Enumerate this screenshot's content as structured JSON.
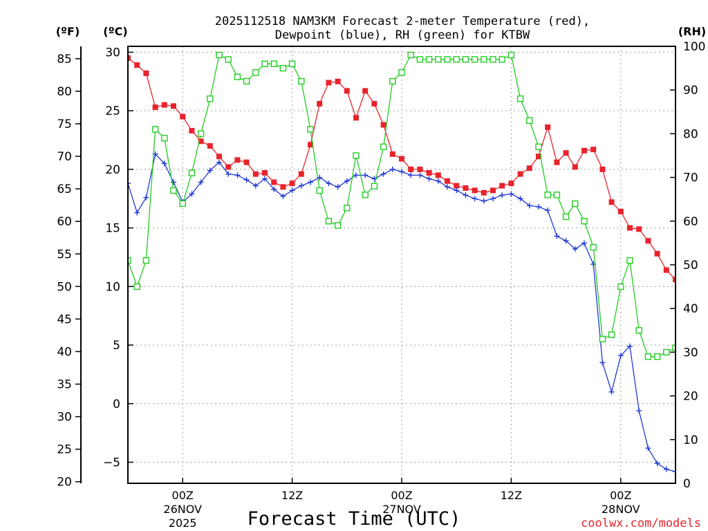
{
  "chart_data": {
    "type": "line",
    "title_line1": "2025112518 NAM3KM Forecast 2-meter Temperature (red),",
    "title_line2": "Dewpoint (blue), RH (green) for KTBW",
    "xlabel": "Forecast Time (UTC)",
    "watermark": "coolwx.com/models",
    "axis_units": {
      "fahrenheit": "(ºF)",
      "celsius": "(ºC)",
      "rh": "(RH)"
    },
    "x_range_hours": [
      0,
      60
    ],
    "celsius_range": [
      -6.8,
      30.5
    ],
    "rh_range": [
      0,
      100
    ],
    "fahrenheit_ticks": [
      "20",
      "25",
      "30",
      "35",
      "40",
      "45",
      "50",
      "55",
      "60",
      "65",
      "70",
      "75",
      "80",
      "85"
    ],
    "celsius_ticks": [
      "-5",
      "0",
      "5",
      "10",
      "15",
      "20",
      "25",
      "30"
    ],
    "rh_ticks": [
      "0",
      "10",
      "20",
      "30",
      "40",
      "50",
      "60",
      "70",
      "80",
      "90",
      "100"
    ],
    "x_ticks": [
      {
        "hour": 6,
        "label": "00Z",
        "date": "26NOV",
        "year": "2025"
      },
      {
        "hour": 18,
        "label": "12Z",
        "date": "",
        "year": ""
      },
      {
        "hour": 30,
        "label": "00Z",
        "date": "27NOV",
        "year": ""
      },
      {
        "hour": 42,
        "label": "12Z",
        "date": "",
        "year": ""
      },
      {
        "hour": 54,
        "label": "00Z",
        "date": "28NOV",
        "year": ""
      }
    ],
    "series": [
      {
        "name": "2-meter Temperature",
        "unit": "C",
        "color": "#e8232c",
        "marker": "filled-square",
        "points": [
          [
            0,
            29.5
          ],
          [
            1,
            28.9
          ],
          [
            2,
            28.2
          ],
          [
            3,
            25.3
          ],
          [
            4,
            25.5
          ],
          [
            5,
            25.4
          ],
          [
            6,
            24.5
          ],
          [
            7,
            23.3
          ],
          [
            8,
            22.4
          ],
          [
            9,
            22.0
          ],
          [
            10,
            21.1
          ],
          [
            11,
            20.2
          ],
          [
            12,
            20.8
          ],
          [
            13,
            20.6
          ],
          [
            14,
            19.6
          ],
          [
            15,
            19.7
          ],
          [
            16,
            18.9
          ],
          [
            17,
            18.5
          ],
          [
            18,
            18.8
          ],
          [
            19,
            19.6
          ],
          [
            20,
            22.1
          ],
          [
            21,
            25.6
          ],
          [
            22,
            27.4
          ],
          [
            23,
            27.5
          ],
          [
            24,
            26.7
          ],
          [
            25,
            24.4
          ],
          [
            26,
            26.7
          ],
          [
            27,
            25.6
          ],
          [
            28,
            23.8
          ],
          [
            29,
            21.3
          ],
          [
            30,
            20.9
          ],
          [
            31,
            20.0
          ],
          [
            32,
            20.0
          ],
          [
            33,
            19.7
          ],
          [
            34,
            19.5
          ],
          [
            35,
            19.0
          ],
          [
            36,
            18.6
          ],
          [
            37,
            18.4
          ],
          [
            38,
            18.2
          ],
          [
            39,
            18.0
          ],
          [
            40,
            18.2
          ],
          [
            41,
            18.6
          ],
          [
            42,
            18.8
          ],
          [
            43,
            19.6
          ],
          [
            44,
            20.1
          ],
          [
            45,
            21.1
          ],
          [
            46,
            23.6
          ],
          [
            47,
            20.6
          ],
          [
            48,
            21.4
          ],
          [
            49,
            20.2
          ],
          [
            50,
            21.6
          ],
          [
            51,
            21.7
          ],
          [
            52,
            20.0
          ],
          [
            53,
            17.2
          ],
          [
            54,
            16.4
          ],
          [
            55,
            15.0
          ],
          [
            56,
            14.9
          ],
          [
            57,
            13.9
          ],
          [
            58,
            12.8
          ],
          [
            59,
            11.4
          ],
          [
            60,
            10.6
          ]
        ]
      },
      {
        "name": "Dewpoint",
        "unit": "C",
        "color": "#1f37d6",
        "marker": "plus",
        "points": [
          [
            0,
            18.8
          ],
          [
            1,
            16.3
          ],
          [
            2,
            17.6
          ],
          [
            3,
            21.3
          ],
          [
            4,
            20.5
          ],
          [
            5,
            18.9
          ],
          [
            6,
            17.2
          ],
          [
            7,
            17.9
          ],
          [
            8,
            18.9
          ],
          [
            9,
            19.9
          ],
          [
            10,
            20.6
          ],
          [
            11,
            19.6
          ],
          [
            12,
            19.5
          ],
          [
            13,
            19.1
          ],
          [
            14,
            18.6
          ],
          [
            15,
            19.2
          ],
          [
            16,
            18.3
          ],
          [
            17,
            17.7
          ],
          [
            18,
            18.2
          ],
          [
            19,
            18.6
          ],
          [
            20,
            18.9
          ],
          [
            21,
            19.3
          ],
          [
            22,
            18.8
          ],
          [
            23,
            18.5
          ],
          [
            24,
            19.0
          ],
          [
            25,
            19.5
          ],
          [
            26,
            19.5
          ],
          [
            27,
            19.2
          ],
          [
            28,
            19.6
          ],
          [
            29,
            20.0
          ],
          [
            30,
            19.8
          ],
          [
            31,
            19.5
          ],
          [
            32,
            19.5
          ],
          [
            33,
            19.2
          ],
          [
            34,
            19.0
          ],
          [
            35,
            18.5
          ],
          [
            36,
            18.2
          ],
          [
            37,
            17.8
          ],
          [
            38,
            17.5
          ],
          [
            39,
            17.3
          ],
          [
            40,
            17.5
          ],
          [
            41,
            17.8
          ],
          [
            42,
            17.9
          ],
          [
            43,
            17.5
          ],
          [
            44,
            16.9
          ],
          [
            45,
            16.8
          ],
          [
            46,
            16.5
          ],
          [
            47,
            14.3
          ],
          [
            48,
            13.9
          ],
          [
            49,
            13.2
          ],
          [
            50,
            13.7
          ],
          [
            51,
            11.9
          ],
          [
            52,
            3.5
          ],
          [
            53,
            1.0
          ],
          [
            54,
            4.1
          ],
          [
            55,
            4.9
          ],
          [
            56,
            -0.6
          ],
          [
            57,
            -3.8
          ],
          [
            58,
            -5.1
          ],
          [
            59,
            -5.6
          ],
          [
            60,
            -5.8
          ]
        ]
      },
      {
        "name": "RH",
        "unit": "%",
        "color": "#22cc22",
        "marker": "open-square",
        "points": [
          [
            0,
            51
          ],
          [
            1,
            45
          ],
          [
            2,
            51
          ],
          [
            3,
            81
          ],
          [
            4,
            79
          ],
          [
            5,
            67
          ],
          [
            6,
            64
          ],
          [
            7,
            71
          ],
          [
            8,
            80
          ],
          [
            9,
            88
          ],
          [
            10,
            98
          ],
          [
            11,
            97
          ],
          [
            12,
            93
          ],
          [
            13,
            92
          ],
          [
            14,
            94
          ],
          [
            15,
            96
          ],
          [
            16,
            96
          ],
          [
            17,
            95
          ],
          [
            18,
            96
          ],
          [
            19,
            92
          ],
          [
            20,
            81
          ],
          [
            21,
            67
          ],
          [
            22,
            60
          ],
          [
            23,
            59
          ],
          [
            24,
            63
          ],
          [
            25,
            75
          ],
          [
            26,
            66
          ],
          [
            27,
            68
          ],
          [
            28,
            77
          ],
          [
            29,
            92
          ],
          [
            30,
            94
          ],
          [
            31,
            98
          ],
          [
            32,
            97
          ],
          [
            33,
            97
          ],
          [
            34,
            97
          ],
          [
            35,
            97
          ],
          [
            36,
            97
          ],
          [
            37,
            97
          ],
          [
            38,
            97
          ],
          [
            39,
            97
          ],
          [
            40,
            97
          ],
          [
            41,
            97
          ],
          [
            42,
            98
          ],
          [
            43,
            88
          ],
          [
            44,
            83
          ],
          [
            45,
            77
          ],
          [
            46,
            66
          ],
          [
            47,
            66
          ],
          [
            48,
            61
          ],
          [
            49,
            64
          ],
          [
            50,
            60
          ],
          [
            51,
            54
          ],
          [
            52,
            33
          ],
          [
            53,
            34
          ],
          [
            54,
            45
          ],
          [
            55,
            51
          ],
          [
            56,
            35
          ],
          [
            57,
            29
          ],
          [
            58,
            29
          ],
          [
            59,
            30
          ],
          [
            60,
            31
          ]
        ]
      }
    ]
  }
}
